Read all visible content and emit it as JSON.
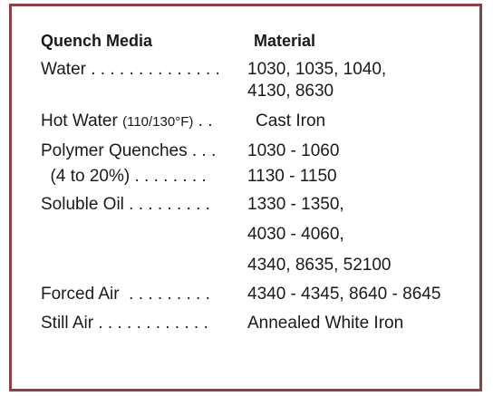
{
  "table": {
    "header": {
      "media": "Quench Media",
      "material": "Material"
    },
    "lines": [
      {
        "left": "Water . . . . . . . . . . . . . . ",
        "right": "1030, 1035, 1040,"
      },
      {
        "left": "",
        "right": "4130, 8630"
      },
      {
        "left": "Hot Water ",
        "left_small": "(110/130°F)",
        "left_after": " . .",
        "right": "Cast Iron"
      },
      {
        "left": "Polymer Quenches . . . ",
        "right": "1030 - 1060"
      },
      {
        "left": "  (4 to 20%) . . . . . . . . ",
        "right": "1130 - 1150"
      },
      {
        "left": "Soluble Oil . . . . . . . . . ",
        "right": "1330 - 1350,"
      },
      {
        "left": "",
        "right": "4030 - 4060,"
      },
      {
        "left": "",
        "right": "4340, 8635, 52100"
      },
      {
        "left": "Forced Air  . . . . . . . . . ",
        "right": "4340 - 4345, 8640 - 8645"
      },
      {
        "left": "Still Air . . . . . . . . . . . . ",
        "right": "Annealed White Iron"
      }
    ]
  },
  "colors": {
    "border": "#8a4149",
    "text": "#1a1a1a"
  }
}
